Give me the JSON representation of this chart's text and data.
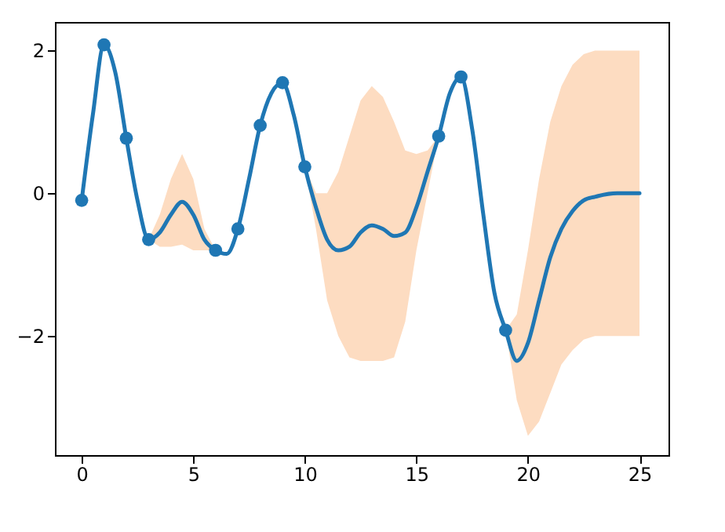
{
  "chart_data": {
    "type": "line",
    "xlim": [
      -1.2,
      26.3
    ],
    "ylim": [
      -3.67,
      2.4
    ],
    "xticks": [
      0,
      5,
      10,
      15,
      20,
      25
    ],
    "yticks": [
      -2,
      0,
      2
    ],
    "grid": false,
    "series": [
      {
        "color": "#1f77b4",
        "line_style": "solid",
        "x": [
          0,
          0.5,
          1,
          1.5,
          2,
          2.5,
          3,
          3.5,
          4,
          4.5,
          5,
          5.5,
          6,
          6.5,
          7,
          7.5,
          8,
          8.5,
          9,
          9.5,
          10,
          10.5,
          11,
          11.5,
          12,
          12.5,
          13,
          13.5,
          14,
          14.5,
          15,
          15.5,
          16,
          16.5,
          17,
          17.5,
          18,
          18.5,
          19,
          19.5,
          20,
          20.5,
          21,
          21.5,
          22,
          22.5,
          23,
          24,
          25
        ],
        "values": [
          -0.1,
          1.1,
          2.08,
          1.7,
          0.77,
          -0.1,
          -0.65,
          -0.55,
          -0.3,
          -0.12,
          -0.3,
          -0.65,
          -0.8,
          -0.85,
          -0.5,
          0.2,
          0.95,
          1.4,
          1.55,
          1.1,
          0.37,
          -0.2,
          -0.65,
          -0.8,
          -0.75,
          -0.55,
          -0.45,
          -0.5,
          -0.6,
          -0.55,
          -0.2,
          0.3,
          0.8,
          1.4,
          1.63,
          0.9,
          -0.3,
          -1.4,
          -1.92,
          -2.35,
          -2.1,
          -1.5,
          -0.9,
          -0.5,
          -0.25,
          -0.1,
          -0.05,
          0.0,
          0.0
        ],
        "lower": [
          -0.1,
          1.1,
          2.08,
          1.7,
          0.77,
          -0.1,
          -0.65,
          -0.75,
          -0.75,
          -0.72,
          -0.8,
          -0.8,
          -0.8,
          -0.85,
          -0.5,
          0.2,
          0.95,
          1.4,
          1.55,
          1.1,
          0.37,
          -0.5,
          -1.5,
          -2.0,
          -2.3,
          -2.35,
          -2.35,
          -2.35,
          -2.3,
          -1.8,
          -0.8,
          0.0,
          0.8,
          1.4,
          1.63,
          0.9,
          -0.3,
          -1.4,
          -1.92,
          -2.9,
          -3.4,
          -3.2,
          -2.8,
          -2.4,
          -2.2,
          -2.05,
          -2.0,
          -2.0,
          -2.0
        ],
        "upper": [
          -0.1,
          1.1,
          2.08,
          1.7,
          0.77,
          -0.1,
          -0.65,
          -0.3,
          0.2,
          0.55,
          0.2,
          -0.5,
          -0.8,
          -0.85,
          -0.5,
          0.2,
          0.95,
          1.4,
          1.55,
          1.1,
          0.37,
          0.0,
          0.0,
          0.3,
          0.8,
          1.3,
          1.5,
          1.35,
          1.0,
          0.6,
          0.55,
          0.6,
          0.8,
          1.4,
          1.63,
          0.9,
          -0.3,
          -1.4,
          -1.92,
          -1.7,
          -0.8,
          0.2,
          1.0,
          1.5,
          1.8,
          1.95,
          2.0,
          2.0,
          2.0
        ]
      },
      {
        "type": "scatter",
        "color": "#1f77b4",
        "marker": "circle",
        "x": [
          0,
          1,
          2,
          3,
          6,
          7,
          8,
          9,
          10,
          16,
          17,
          19
        ],
        "values": [
          -0.1,
          2.08,
          0.77,
          -0.65,
          -0.8,
          -0.5,
          0.95,
          1.55,
          0.37,
          0.8,
          1.63,
          -1.92
        ]
      }
    ]
  }
}
